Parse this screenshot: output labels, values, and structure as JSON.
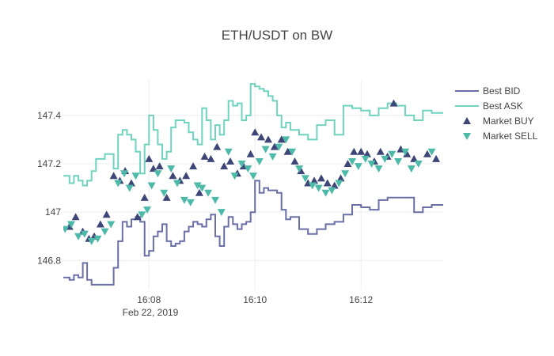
{
  "chart_data": {
    "type": "line",
    "title": "ETH/USDT on BW",
    "xlabel": "",
    "ylabel": "",
    "x_tick_labels": [
      "16:08",
      "16:10",
      "16:12"
    ],
    "x_date_label": "Feb 22, 2019",
    "x_ticks": [
      "2019-02-22 16:08",
      "2019-02-22 16:10",
      "2019-02-22 16:12"
    ],
    "xlim": [
      "2019-02-22 16:06:23",
      "2019-02-22 16:13:33"
    ],
    "ylim": [
      146.68,
      147.55
    ],
    "y_ticks": [
      146.8,
      147,
      147.2,
      147.4
    ],
    "y_tick_labels": [
      "146.8",
      "147",
      "147.2",
      "147.4"
    ],
    "grid": true,
    "legend_position": "right",
    "series": [
      {
        "name": "Best BID",
        "kind": "step-line",
        "color": "#6a6fa5",
        "x": [
          "16:06:23",
          "16:06:30",
          "16:06:35",
          "16:06:40",
          "16:06:45",
          "16:06:50",
          "16:06:55",
          "16:07:00",
          "16:07:10",
          "16:07:20",
          "16:07:25",
          "16:07:30",
          "16:07:35",
          "16:07:40",
          "16:07:45",
          "16:07:50",
          "16:07:55",
          "16:08:00",
          "16:08:05",
          "16:08:10",
          "16:08:15",
          "16:08:20",
          "16:08:25",
          "16:08:30",
          "16:08:35",
          "16:08:40",
          "16:08:45",
          "16:08:50",
          "16:08:55",
          "16:09:00",
          "16:09:05",
          "16:09:10",
          "16:09:15",
          "16:09:20",
          "16:09:25",
          "16:09:30",
          "16:09:35",
          "16:09:40",
          "16:09:45",
          "16:09:50",
          "16:09:55",
          "16:10:00",
          "16:10:05",
          "16:10:10",
          "16:10:15",
          "16:10:20",
          "16:10:25",
          "16:10:30",
          "16:10:35",
          "16:10:40",
          "16:10:50",
          "16:11:00",
          "16:11:10",
          "16:11:20",
          "16:11:30",
          "16:11:40",
          "16:11:50",
          "16:12:00",
          "16:12:10",
          "16:12:20",
          "16:12:30",
          "16:12:40",
          "16:12:50",
          "16:13:00",
          "16:13:10",
          "16:13:20",
          "16:13:33"
        ],
        "y": [
          146.73,
          146.72,
          146.74,
          146.73,
          146.79,
          146.72,
          146.7,
          146.7,
          146.7,
          146.77,
          146.88,
          146.96,
          146.94,
          146.97,
          146.98,
          146.96,
          146.82,
          146.84,
          146.9,
          146.92,
          146.95,
          146.88,
          146.86,
          146.87,
          146.88,
          146.92,
          146.94,
          146.96,
          146.95,
          146.94,
          146.97,
          146.99,
          146.9,
          146.86,
          146.94,
          146.98,
          146.95,
          146.93,
          146.95,
          146.96,
          147.0,
          147.13,
          147.08,
          147.1,
          147.09,
          147.09,
          147.08,
          147.01,
          146.97,
          146.98,
          146.93,
          146.91,
          146.93,
          146.95,
          146.96,
          146.99,
          147.03,
          147.02,
          147.01,
          147.05,
          147.06,
          147.06,
          147.06,
          147.0,
          147.02,
          147.03,
          147.03
        ]
      },
      {
        "name": "Best ASK",
        "kind": "step-line",
        "color": "#6fd3c0",
        "x": [
          "16:06:23",
          "16:06:30",
          "16:06:35",
          "16:06:40",
          "16:06:45",
          "16:06:50",
          "16:06:55",
          "16:07:00",
          "16:07:10",
          "16:07:20",
          "16:07:25",
          "16:07:30",
          "16:07:35",
          "16:07:40",
          "16:07:45",
          "16:07:50",
          "16:07:55",
          "16:08:00",
          "16:08:05",
          "16:08:10",
          "16:08:15",
          "16:08:20",
          "16:08:25",
          "16:08:30",
          "16:08:35",
          "16:08:40",
          "16:08:45",
          "16:08:50",
          "16:08:55",
          "16:09:00",
          "16:09:05",
          "16:09:10",
          "16:09:15",
          "16:09:20",
          "16:09:25",
          "16:09:30",
          "16:09:35",
          "16:09:40",
          "16:09:45",
          "16:09:50",
          "16:09:55",
          "16:10:00",
          "16:10:05",
          "16:10:10",
          "16:10:15",
          "16:10:20",
          "16:10:25",
          "16:10:30",
          "16:10:35",
          "16:10:40",
          "16:10:50",
          "16:11:00",
          "16:11:10",
          "16:11:20",
          "16:11:30",
          "16:11:40",
          "16:11:50",
          "16:12:00",
          "16:12:10",
          "16:12:20",
          "16:12:30",
          "16:12:40",
          "16:12:50",
          "16:13:00",
          "16:13:10",
          "16:13:20",
          "16:13:33"
        ],
        "y": [
          147.15,
          147.12,
          147.15,
          147.13,
          147.11,
          147.13,
          147.17,
          147.22,
          147.24,
          147.18,
          147.32,
          147.34,
          147.32,
          147.3,
          147.25,
          147.16,
          147.28,
          147.4,
          147.34,
          147.28,
          147.22,
          147.25,
          147.35,
          147.38,
          147.38,
          147.37,
          147.33,
          147.3,
          147.28,
          147.43,
          147.38,
          147.3,
          147.36,
          147.32,
          147.38,
          147.46,
          147.44,
          147.45,
          147.38,
          147.4,
          147.53,
          147.52,
          147.51,
          147.5,
          147.48,
          147.46,
          147.4,
          147.35,
          147.37,
          147.34,
          147.32,
          147.3,
          147.36,
          147.38,
          147.32,
          147.44,
          147.43,
          147.42,
          147.4,
          147.43,
          147.45,
          147.44,
          147.4,
          147.38,
          147.42,
          147.41,
          147.41
        ]
      },
      {
        "name": "Market BUY",
        "kind": "markers",
        "symbol": "triangle-up",
        "color": "#3e4577",
        "x": [
          "16:06:30",
          "16:06:37",
          "16:06:45",
          "16:06:52",
          "16:06:58",
          "16:07:05",
          "16:07:12",
          "16:07:20",
          "16:07:27",
          "16:07:33",
          "16:07:40",
          "16:07:47",
          "16:07:55",
          "16:08:00",
          "16:08:05",
          "16:08:12",
          "16:08:20",
          "16:08:27",
          "16:08:35",
          "16:08:42",
          "16:08:50",
          "16:08:57",
          "16:09:03",
          "16:09:10",
          "16:09:17",
          "16:09:25",
          "16:09:32",
          "16:09:40",
          "16:09:47",
          "16:09:55",
          "16:10:00",
          "16:10:07",
          "16:10:15",
          "16:10:22",
          "16:10:30",
          "16:10:37",
          "16:10:45",
          "16:10:52",
          "16:11:00",
          "16:11:07",
          "16:11:15",
          "16:11:22",
          "16:11:30",
          "16:11:37",
          "16:11:45",
          "16:11:52",
          "16:12:00",
          "16:12:07",
          "16:12:15",
          "16:12:22",
          "16:12:30",
          "16:12:37",
          "16:12:45",
          "16:12:52",
          "16:13:00",
          "16:13:15",
          "16:13:25"
        ],
        "y": [
          146.94,
          146.98,
          146.92,
          146.89,
          146.9,
          146.95,
          146.99,
          147.15,
          147.13,
          147.17,
          147.12,
          146.98,
          147.06,
          147.22,
          147.18,
          147.19,
          147.06,
          147.15,
          147.13,
          147.15,
          147.19,
          147.08,
          147.23,
          147.22,
          147.27,
          147.19,
          147.21,
          147.16,
          147.19,
          147.24,
          147.33,
          147.31,
          147.3,
          147.27,
          147.3,
          147.25,
          147.21,
          147.17,
          147.12,
          147.13,
          147.14,
          147.12,
          147.11,
          147.14,
          147.2,
          147.25,
          147.25,
          147.24,
          147.21,
          147.25,
          147.23,
          147.45,
          147.26,
          147.24,
          147.22,
          147.24,
          147.22
        ]
      },
      {
        "name": "Market SELL",
        "kind": "markers",
        "symbol": "triangle-down",
        "color": "#4dbaa9",
        "x": [
          "16:06:25",
          "16:06:32",
          "16:06:40",
          "16:06:47",
          "16:06:55",
          "16:07:02",
          "16:07:10",
          "16:07:17",
          "16:07:25",
          "16:07:32",
          "16:07:38",
          "16:07:45",
          "16:07:52",
          "16:07:58",
          "16:08:03",
          "16:08:10",
          "16:08:17",
          "16:08:25",
          "16:08:32",
          "16:08:40",
          "16:08:47",
          "16:08:55",
          "16:09:00",
          "16:09:07",
          "16:09:15",
          "16:09:22",
          "16:09:30",
          "16:09:37",
          "16:09:45",
          "16:09:52",
          "16:09:58",
          "16:10:05",
          "16:10:12",
          "16:10:20",
          "16:10:27",
          "16:10:35",
          "16:10:42",
          "16:10:50",
          "16:10:57",
          "16:11:05",
          "16:11:12",
          "16:11:20",
          "16:11:27",
          "16:11:35",
          "16:11:42",
          "16:11:50",
          "16:11:57",
          "16:12:05",
          "16:12:12",
          "16:12:20",
          "16:12:27",
          "16:12:35",
          "16:12:42",
          "16:12:50",
          "16:12:57",
          "16:13:05",
          "16:13:20"
        ],
        "y": [
          146.93,
          146.95,
          146.9,
          146.91,
          146.88,
          146.89,
          146.92,
          146.95,
          147.12,
          147.16,
          147.1,
          147.15,
          146.99,
          147.01,
          147.11,
          147.16,
          147.08,
          147.18,
          147.12,
          147.05,
          147.04,
          147.11,
          147.1,
          147.08,
          147.05,
          147.0,
          147.25,
          147.15,
          147.2,
          147.18,
          147.15,
          147.21,
          147.26,
          147.23,
          147.27,
          147.3,
          147.25,
          147.18,
          147.14,
          147.11,
          147.1,
          147.08,
          147.09,
          147.12,
          147.16,
          147.21,
          147.19,
          147.22,
          147.2,
          147.18,
          147.22,
          147.24,
          147.21,
          147.25,
          147.18,
          147.2,
          147.25
        ]
      }
    ]
  }
}
